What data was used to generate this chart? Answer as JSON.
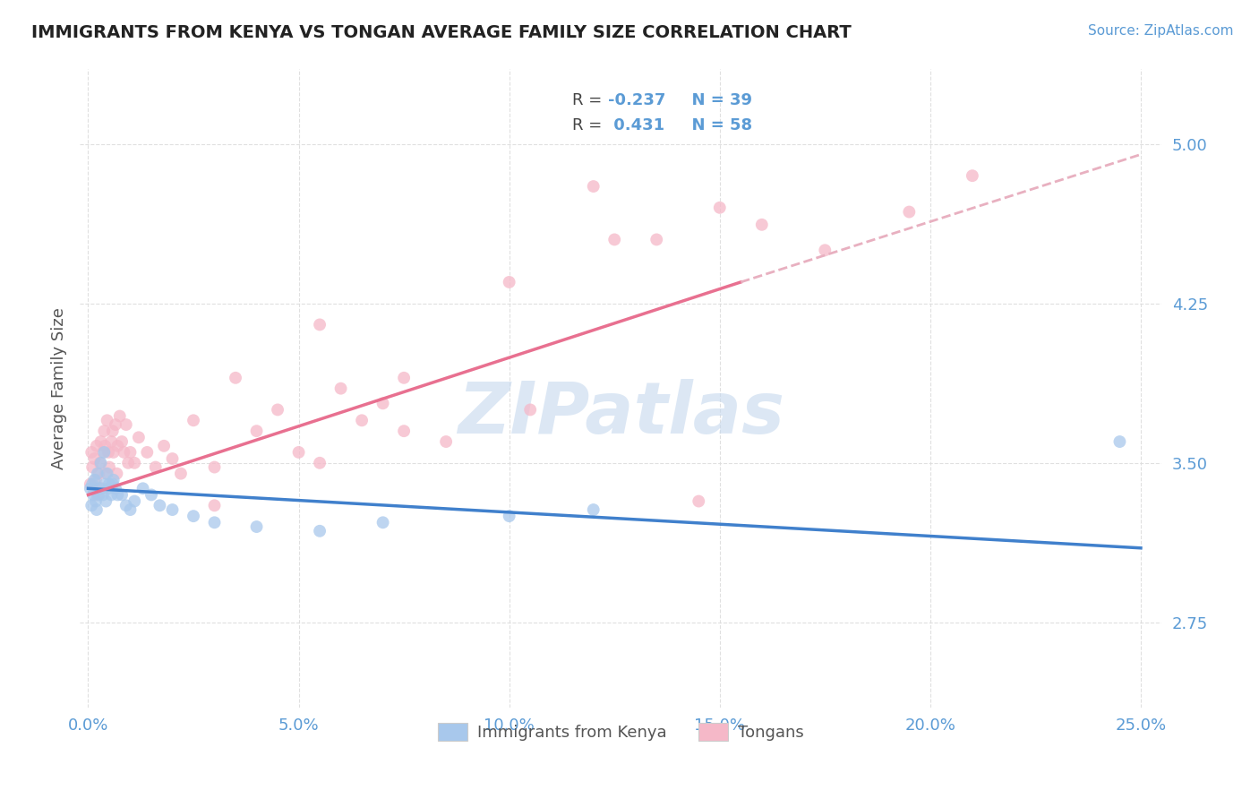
{
  "title": "IMMIGRANTS FROM KENYA VS TONGAN AVERAGE FAMILY SIZE CORRELATION CHART",
  "source": "Source: ZipAtlas.com",
  "ylabel": "Average Family Size",
  "xlabel_ticks": [
    "0.0%",
    "5.0%",
    "10.0%",
    "15.0%",
    "20.0%",
    "25.0%"
  ],
  "xlabel_vals": [
    0.0,
    5.0,
    10.0,
    15.0,
    20.0,
    25.0
  ],
  "yticks": [
    2.75,
    3.5,
    4.25,
    5.0
  ],
  "ylim": [
    2.35,
    5.35
  ],
  "xlim": [
    -0.2,
    25.5
  ],
  "legend_labels": [
    "Immigrants from Kenya",
    "Tongans"
  ],
  "kenya_R": -0.237,
  "kenya_N": 39,
  "tongan_R": 0.431,
  "tongan_N": 58,
  "kenya_color": "#A8C8EC",
  "tongan_color": "#F5B8C8",
  "kenya_line_color": "#4080CC",
  "tongan_line_color": "#E87090",
  "tongan_line_dashed_color": "#E8B0C0",
  "background_color": "#FFFFFF",
  "title_color": "#222222",
  "axis_color": "#5B9BD5",
  "grid_color": "#DDDDDD",
  "kenya_x": [
    0.05,
    0.08,
    0.1,
    0.12,
    0.15,
    0.18,
    0.2,
    0.22,
    0.25,
    0.28,
    0.3,
    0.35,
    0.38,
    0.4,
    0.42,
    0.45,
    0.48,
    0.5,
    0.55,
    0.58,
    0.6,
    0.65,
    0.7,
    0.8,
    0.9,
    1.0,
    1.1,
    1.3,
    1.5,
    1.7,
    2.0,
    2.5,
    3.0,
    4.0,
    5.5,
    7.0,
    10.0,
    12.0,
    24.5
  ],
  "kenya_y": [
    3.38,
    3.3,
    3.4,
    3.35,
    3.42,
    3.32,
    3.28,
    3.45,
    3.35,
    3.38,
    3.5,
    3.35,
    3.55,
    3.4,
    3.32,
    3.45,
    3.38,
    3.4,
    3.35,
    3.4,
    3.42,
    3.38,
    3.35,
    3.35,
    3.3,
    3.28,
    3.32,
    3.38,
    3.35,
    3.3,
    3.28,
    3.25,
    3.22,
    3.2,
    3.18,
    3.22,
    3.25,
    3.28,
    3.6
  ],
  "tongan_x": [
    0.05,
    0.08,
    0.1,
    0.12,
    0.15,
    0.18,
    0.2,
    0.22,
    0.25,
    0.28,
    0.3,
    0.32,
    0.35,
    0.38,
    0.4,
    0.42,
    0.45,
    0.48,
    0.5,
    0.55,
    0.58,
    0.6,
    0.65,
    0.68,
    0.7,
    0.75,
    0.8,
    0.85,
    0.9,
    0.95,
    1.0,
    1.1,
    1.2,
    1.4,
    1.6,
    1.8,
    2.0,
    2.2,
    2.5,
    3.0,
    3.5,
    4.0,
    4.5,
    5.0,
    5.5,
    6.0,
    6.5,
    7.0,
    7.5,
    8.5,
    10.0,
    12.0,
    13.5,
    15.0,
    16.0,
    17.5,
    19.5,
    21.0
  ],
  "tongan_y": [
    3.4,
    3.55,
    3.48,
    3.38,
    3.52,
    3.42,
    3.58,
    3.35,
    3.45,
    3.5,
    3.6,
    3.38,
    3.55,
    3.65,
    3.58,
    3.45,
    3.7,
    3.55,
    3.48,
    3.6,
    3.65,
    3.55,
    3.68,
    3.45,
    3.58,
    3.72,
    3.6,
    3.55,
    3.68,
    3.5,
    3.55,
    3.5,
    3.62,
    3.55,
    3.48,
    3.58,
    3.52,
    3.45,
    3.7,
    3.48,
    3.9,
    3.65,
    3.75,
    3.55,
    4.15,
    3.85,
    3.7,
    3.78,
    3.65,
    3.6,
    4.35,
    4.8,
    4.55,
    4.7,
    4.62,
    4.5,
    4.68,
    4.85
  ],
  "tongan_extra_x": [
    3.0,
    5.5,
    7.5,
    10.5,
    12.5,
    14.5
  ],
  "tongan_extra_y": [
    3.3,
    3.5,
    3.9,
    3.75,
    4.55,
    3.32
  ],
  "kenya_line_x0": 0.0,
  "kenya_line_y0": 3.38,
  "kenya_line_x1": 25.0,
  "kenya_line_y1": 3.1,
  "tongan_line_x0": 0.0,
  "tongan_line_y0": 3.35,
  "tongan_line_x1": 15.5,
  "tongan_line_y1": 4.35,
  "tongan_dash_x0": 15.5,
  "tongan_dash_y0": 4.35,
  "tongan_dash_x1": 25.0,
  "tongan_dash_y1": 4.95,
  "watermark_text": "ZIPatlas",
  "watermark_color": "#C5D8EE",
  "watermark_alpha": 0.6
}
